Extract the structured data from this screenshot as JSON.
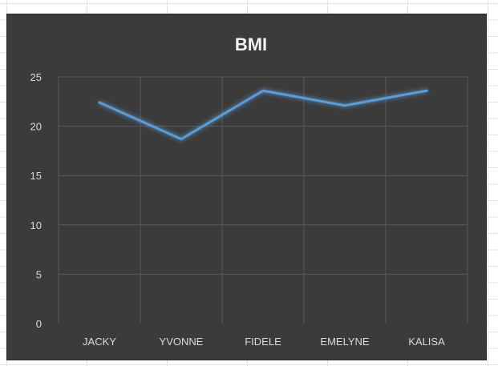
{
  "chart_data": {
    "type": "line",
    "title": "BMI",
    "categories": [
      "JACKY",
      "YVONNE",
      "FIDELE",
      "EMELYNE",
      "KALISA"
    ],
    "series": [
      {
        "values": [
          22.4,
          18.7,
          23.6,
          22.1,
          23.6
        ]
      }
    ],
    "yticks": [
      "0",
      "5",
      "10",
      "15",
      "20",
      "25"
    ],
    "ylim": [
      0,
      25
    ],
    "grid": true,
    "legend": "none",
    "colors": {
      "background": "#3b3b3b",
      "line": "#5b9bd5",
      "grid": "#5a5a5a",
      "text": "#d9d9d9"
    }
  }
}
